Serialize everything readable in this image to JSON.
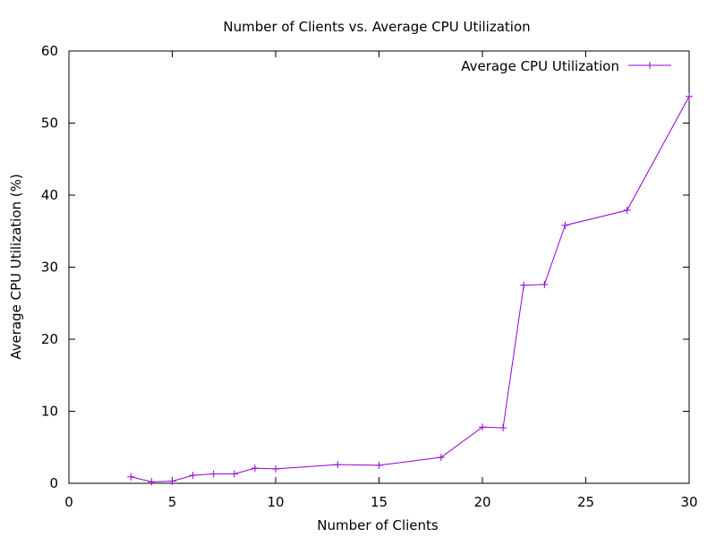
{
  "chart_data": {
    "type": "line",
    "title": "Number of Clients vs. Average CPU Utilization",
    "xlabel": "Number of Clients",
    "ylabel": "Average CPU Utilization (%)",
    "xlim": [
      0,
      30
    ],
    "ylim": [
      0,
      60
    ],
    "xticks": [
      0,
      5,
      10,
      15,
      20,
      25,
      30
    ],
    "yticks": [
      0,
      10,
      20,
      30,
      40,
      50,
      60
    ],
    "grid": false,
    "legend_position": "top-right",
    "series": [
      {
        "name": "Average CPU Utilization",
        "color": "#9400d3",
        "marker": "plus",
        "x": [
          3,
          4,
          5,
          6,
          7,
          8,
          9,
          10,
          13,
          15,
          18,
          20,
          21,
          22,
          23,
          24,
          27,
          30
        ],
        "y": [
          0.9,
          0.2,
          0.3,
          1.1,
          1.3,
          1.3,
          2.1,
          2.0,
          2.6,
          2.5,
          3.6,
          7.8,
          7.7,
          27.5,
          27.6,
          35.8,
          37.9,
          53.7
        ]
      }
    ]
  }
}
